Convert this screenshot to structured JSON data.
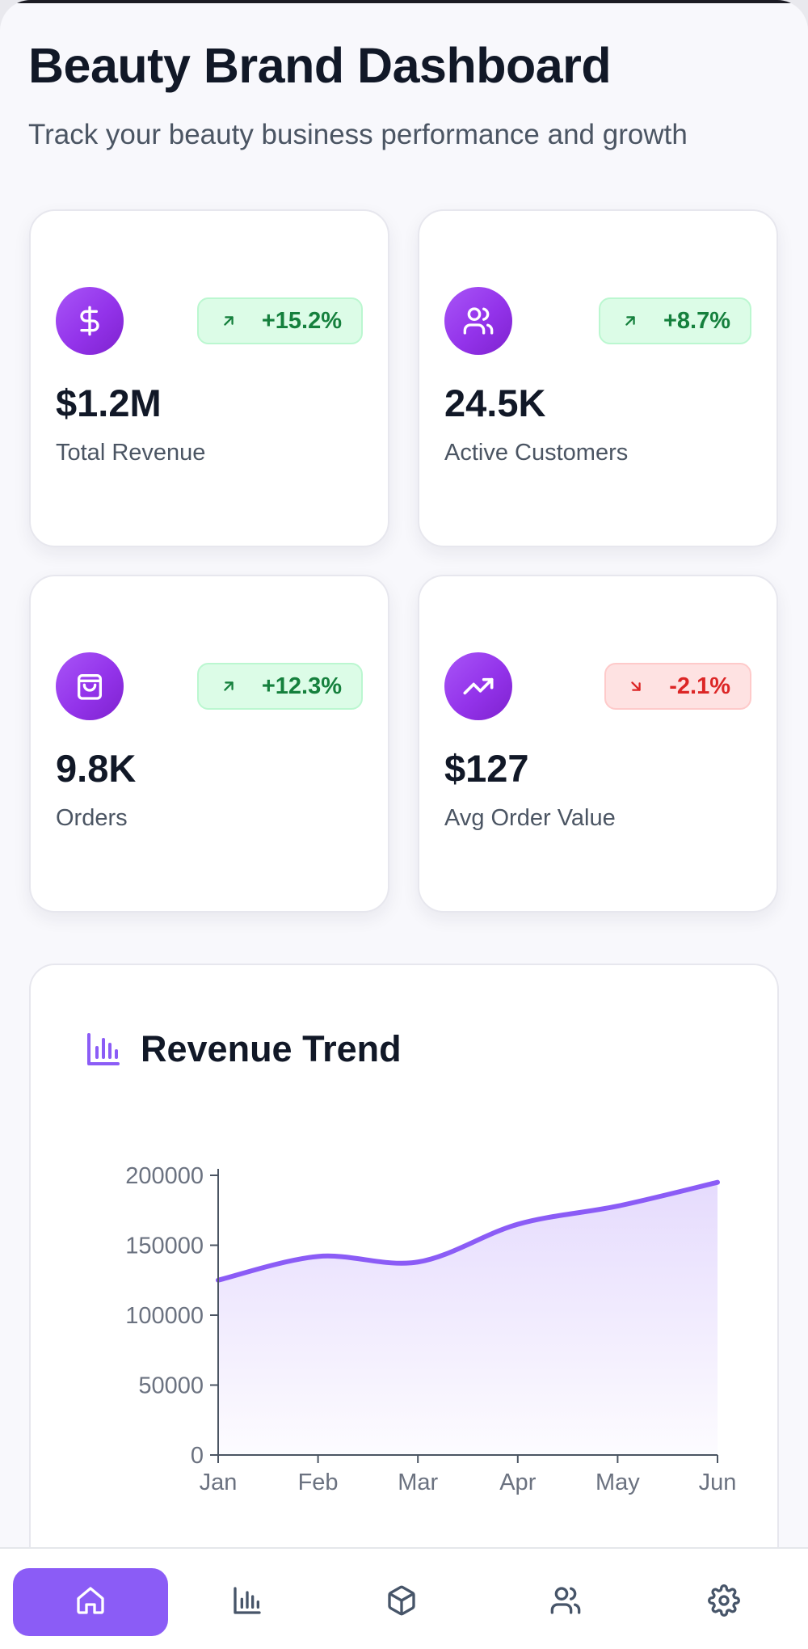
{
  "header": {
    "title": "Beauty Brand Dashboard",
    "subtitle": "Track your beauty business performance and growth"
  },
  "stats": [
    {
      "icon": "dollar-icon",
      "change": "+15.2%",
      "direction": "up",
      "value": "$1.2M",
      "label": "Total Revenue"
    },
    {
      "icon": "users-icon",
      "change": "+8.7%",
      "direction": "up",
      "value": "24.5K",
      "label": "Active Customers"
    },
    {
      "icon": "shopping-bag-icon",
      "change": "+12.3%",
      "direction": "up",
      "value": "9.8K",
      "label": "Orders"
    },
    {
      "icon": "trending-up-icon",
      "change": "-2.1%",
      "direction": "down",
      "value": "$127",
      "label": "Avg Order Value"
    }
  ],
  "chart_section": {
    "title": "Revenue Trend",
    "icon": "bar-chart-icon"
  },
  "chart_data": {
    "type": "area",
    "title": "Revenue Trend",
    "categories": [
      "Jan",
      "Feb",
      "Mar",
      "Apr",
      "May",
      "Jun"
    ],
    "values": [
      125000,
      142000,
      138000,
      165000,
      178000,
      195000
    ],
    "ylim": [
      0,
      200000
    ],
    "yticks": [
      "0",
      "50000",
      "100000",
      "150000",
      "200000"
    ],
    "xlabel": "",
    "ylabel": "",
    "grid": false,
    "color": "#8b5cf6"
  },
  "nav": {
    "items": [
      {
        "icon": "home-icon",
        "active": true
      },
      {
        "icon": "bar-chart-icon",
        "active": false
      },
      {
        "icon": "box-icon",
        "active": false
      },
      {
        "icon": "users-icon",
        "active": false
      },
      {
        "icon": "settings-icon",
        "active": false
      }
    ]
  },
  "colors": {
    "accent": "#8b5cf6",
    "positive": "#15803d",
    "negative": "#dc2626"
  }
}
